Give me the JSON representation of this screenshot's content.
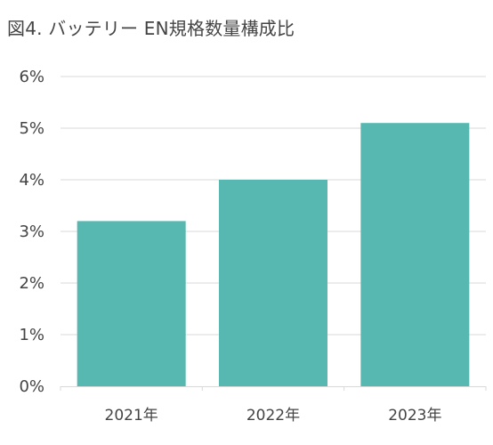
{
  "chart_data": {
    "type": "bar",
    "title": "図4. バッテリー EN規格数量構成比",
    "categories": [
      "2021年",
      "2022年",
      "2023年"
    ],
    "values": [
      3.2,
      4.0,
      5.1
    ],
    "y_tick_labels": [
      "0%",
      "1%",
      "2%",
      "3%",
      "4%",
      "5%",
      "6%"
    ],
    "ylim": [
      0,
      6
    ],
    "xlabel": "",
    "ylabel": "",
    "grid": true,
    "bar_color": "#56b8b0",
    "grid_color": "#d9d9d9"
  }
}
